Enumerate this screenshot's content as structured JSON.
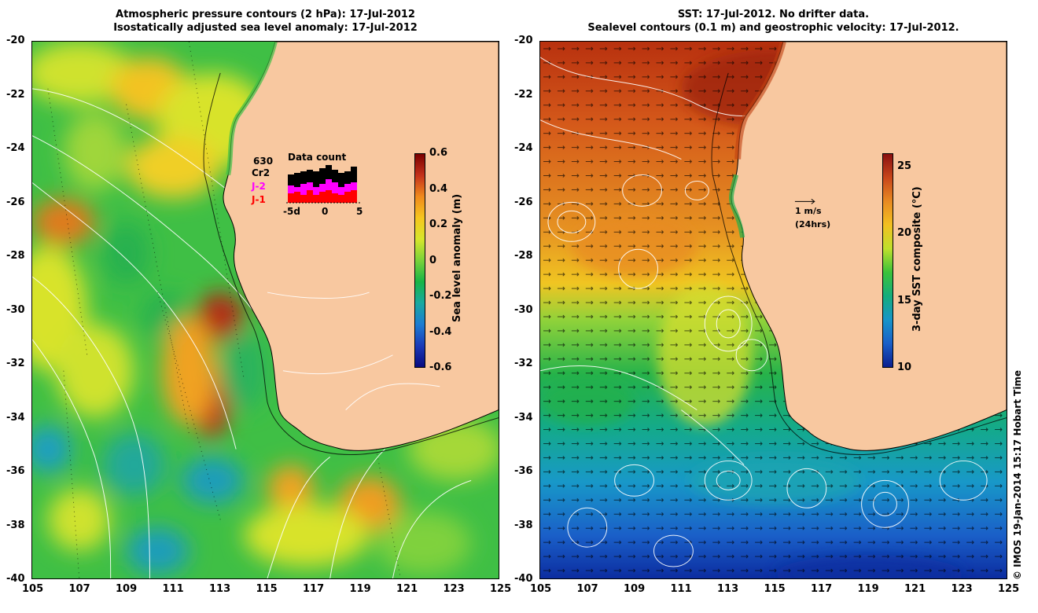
{
  "left_panel": {
    "title_line1": "Atmospheric pressure contours (2 hPa): 17-Jul-2012",
    "title_line2": "Isostatically adjusted sea level anomaly: 17-Jul-2012",
    "colorbar": {
      "label": "Sea level anomaly (m)",
      "ticks": [
        "0.6",
        "0.4",
        "0.2",
        "0",
        "-0.2",
        "-0.4",
        "-0.6"
      ],
      "colors": [
        "#7a0000",
        "#c4311b",
        "#f08a1d",
        "#f6c61e",
        "#d7e62b",
        "#79d23a",
        "#17b546",
        "#18a9a0",
        "#1c7cd2",
        "#1a3ab8",
        "#070a80"
      ]
    },
    "data_count": {
      "title": "Data count",
      "satellite_total": "630",
      "satellite_1": "Cr2",
      "satellite_2": "J-2",
      "satellite_3": "J-1",
      "axis_ticks": [
        "-5d",
        "0",
        "5"
      ]
    }
  },
  "right_panel": {
    "title_line1": "SST: 17-Jul-2012. No drifter data.",
    "title_line2": "Sealevel contours (0.1 m) and geostrophic velocity: 17-Jul-2012.",
    "colorbar": {
      "label": "3-day SST composite (°C)",
      "ticks": [
        "25",
        "20",
        "15",
        "10"
      ],
      "colors": [
        "#8a1010",
        "#c8461a",
        "#e88a22",
        "#f2c021",
        "#bfe02c",
        "#3bc23a",
        "#14ad7c",
        "#1895c8",
        "#1a5fc8",
        "#0c1f8f"
      ]
    },
    "velocity_legend": {
      "speed": "1 m/s",
      "duration": "(24hrs)"
    }
  },
  "axes": {
    "y_ticks": [
      "-20",
      "-22",
      "-24",
      "-26",
      "-28",
      "-30",
      "-32",
      "-34",
      "-36",
      "-38",
      "-40"
    ],
    "x_ticks": [
      "105",
      "107",
      "109",
      "111",
      "113",
      "115",
      "117",
      "119",
      "121",
      "123",
      "125"
    ]
  },
  "credit": "© IMOS 19-Jan-2014 15:17 Hobart Time",
  "colors": {
    "land": "#f8c8a0",
    "coastline": "#000000",
    "contour": "#ffffff"
  }
}
